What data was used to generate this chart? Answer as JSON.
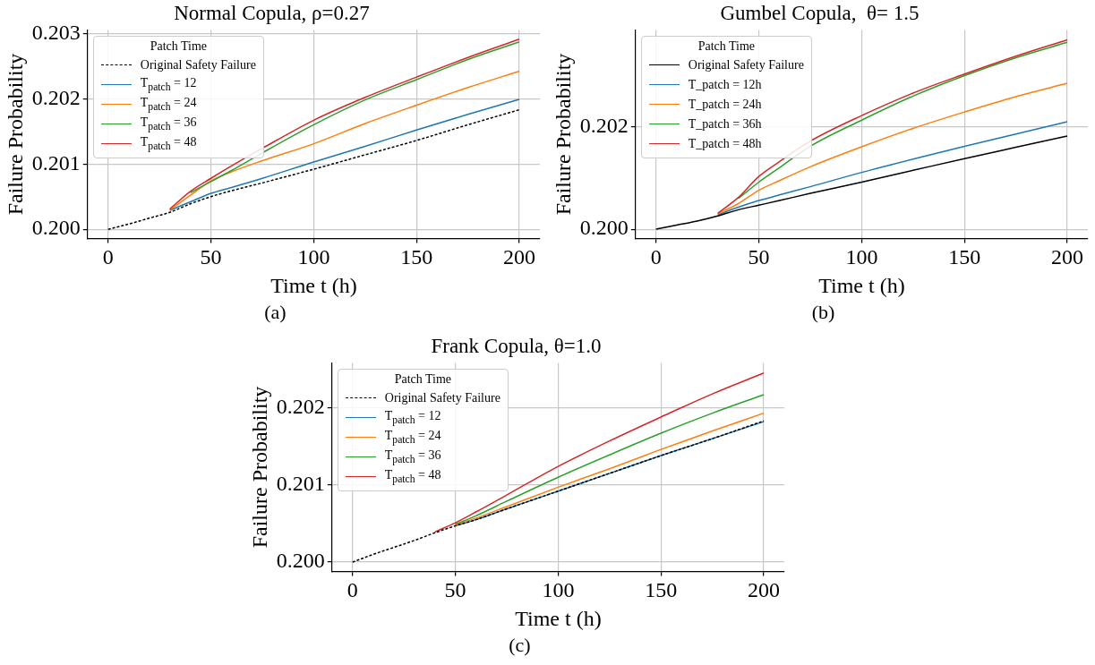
{
  "chart_data": [
    {
      "type": "line",
      "title": "Normal Copula, ρ=0.27",
      "xlabel": "Time t (h)",
      "ylabel": "Failure Probability",
      "legend_title": "Patch Time",
      "legend": "top left",
      "grid": true,
      "annotations": [
        "(a)"
      ],
      "xlim": [
        -10,
        210
      ],
      "xticks": [
        0,
        50,
        100,
        150,
        200
      ],
      "ylim": [
        0.19986,
        0.20305
      ],
      "yticks": [
        {
          "value": 0.2,
          "label": "0.200"
        },
        {
          "value": 0.201,
          "label": "0.201"
        },
        {
          "value": 0.202,
          "label": "0.202"
        },
        {
          "value": 0.203,
          "label": "0.203"
        }
      ],
      "x": [
        0,
        10,
        20,
        30,
        40,
        50,
        60,
        75,
        100,
        125,
        150,
        175,
        200
      ],
      "series": [
        {
          "name": "Original Safety Failure",
          "color": "#000000",
          "line_style": "dashed",
          "values": [
            0.2,
            0.20008,
            0.20017,
            0.20026,
            0.20039,
            0.2005,
            0.20059,
            0.20071,
            0.20092,
            0.20114,
            0.20136,
            0.2016,
            0.20183
          ]
        },
        {
          "name": "T$_{patch}$ = 12",
          "color": "#1f77b4",
          "values": [
            null,
            null,
            null,
            0.20029,
            0.20042,
            0.20055,
            0.20064,
            0.20078,
            0.20103,
            0.20127,
            0.20152,
            0.20176,
            0.20199
          ]
        },
        {
          "name": "T$_{patch}$ = 24",
          "color": "#ff7f0e",
          "values": [
            null,
            null,
            null,
            0.2003,
            0.20052,
            0.20074,
            0.20088,
            0.20105,
            0.20131,
            0.20162,
            0.2019,
            0.20217,
            0.20242
          ]
        },
        {
          "name": "T$_{patch}$ = 36",
          "color": "#2ca02c",
          "values": [
            null,
            null,
            null,
            null,
            0.20056,
            0.20073,
            0.2009,
            0.20117,
            0.2016,
            0.20198,
            0.20229,
            0.2026,
            0.20287
          ]
        },
        {
          "name": "T$_{patch}$ = 48",
          "color": "#d62728",
          "values": [
            null,
            null,
            null,
            0.20031,
            0.20058,
            0.20078,
            0.20097,
            0.20124,
            0.20167,
            0.20202,
            0.20233,
            0.20263,
            0.20291
          ]
        }
      ]
    },
    {
      "type": "line",
      "title": "Gumbel Copula,  θ= 1.5",
      "xlabel": "Time t (h)",
      "ylabel": "Failure Probability",
      "legend_title": "Patch Time",
      "legend": "top left",
      "grid": true,
      "annotations": [
        "(b)"
      ],
      "xlim": [
        -10,
        210
      ],
      "xticks": [
        0,
        50,
        100,
        150,
        200
      ],
      "ylim": [
        0.19982,
        0.20389
      ],
      "yticks": [
        {
          "value": 0.2,
          "label": "0.200"
        },
        {
          "value": 0.202,
          "label": "0.202"
        }
      ],
      "x": [
        0,
        10,
        20,
        30,
        40,
        50,
        60,
        75,
        100,
        125,
        150,
        175,
        200
      ],
      "series": [
        {
          "name": "Original Safety Failure",
          "color": "#000000",
          "values": [
            0.2,
            0.20008,
            0.20016,
            0.20026,
            0.20038,
            0.20047,
            0.20056,
            0.2007,
            0.20092,
            0.20115,
            0.20138,
            0.2016,
            0.20182
          ]
        },
        {
          "name": "T_patch = 12h",
          "color": "#1f77b4",
          "values": [
            null,
            null,
            null,
            0.20028,
            0.20043,
            0.20056,
            0.20067,
            0.20083,
            0.20111,
            0.20137,
            0.20162,
            0.20186,
            0.2021
          ]
        },
        {
          "name": "T_patch = 24h",
          "color": "#ff7f0e",
          "values": [
            null,
            null,
            null,
            0.2003,
            0.2005,
            0.20076,
            0.20095,
            0.20122,
            0.20161,
            0.20197,
            0.20229,
            0.20259,
            0.20285
          ]
        },
        {
          "name": "T_patch = 36h",
          "color": "#2ca02c",
          "values": [
            null,
            null,
            null,
            null,
            0.2006,
            0.20092,
            0.2012,
            0.20162,
            0.20213,
            0.2026,
            0.203,
            0.20335,
            0.20365
          ]
        },
        {
          "name": "T_patch = 48h",
          "color": "#d62728",
          "values": [
            null,
            null,
            null,
            0.20031,
            0.20062,
            0.20103,
            0.20132,
            0.20172,
            0.20222,
            0.20266,
            0.20303,
            0.20338,
            0.2037
          ]
        }
      ]
    },
    {
      "type": "line",
      "title": "Frank Copula, θ=1.0",
      "xlabel": "Time t (h)",
      "ylabel": "Failure Probability",
      "legend_title": "Patch Time",
      "legend": "top left",
      "grid": true,
      "annotations": [
        "(c)"
      ],
      "xlim": [
        -10,
        210
      ],
      "xticks": [
        0,
        50,
        100,
        150,
        200
      ],
      "ylim": [
        0.19988,
        0.20258
      ],
      "yticks": [
        {
          "value": 0.2,
          "label": "0.200"
        },
        {
          "value": 0.201,
          "label": "0.201"
        },
        {
          "value": 0.202,
          "label": "0.202"
        }
      ],
      "x": [
        0,
        10,
        20,
        30,
        40,
        50,
        60,
        75,
        100,
        125,
        150,
        175,
        200
      ],
      "series": [
        {
          "name": "Original Safety Failure",
          "color": "#000000",
          "line_style": "dashed",
          "values": [
            0.2,
            0.2001,
            0.20019,
            0.20028,
            0.20038,
            0.20047,
            0.20055,
            0.20069,
            0.20092,
            0.20115,
            0.20138,
            0.2016,
            0.20183
          ]
        },
        {
          "name": "T$_{patch}$ = 12",
          "color": "#1f77b4",
          "values": [
            null,
            null,
            null,
            null,
            null,
            0.20047,
            0.20055,
            0.20069,
            0.20092,
            0.20115,
            0.20138,
            0.2016,
            0.20182
          ]
        },
        {
          "name": "T$_{patch}$ = 24",
          "color": "#ff7f0e",
          "values": [
            null,
            null,
            null,
            null,
            null,
            0.20048,
            0.20057,
            0.20072,
            0.20097,
            0.20121,
            0.20146,
            0.2017,
            0.20193
          ]
        },
        {
          "name": "T$_{patch}$ = 36",
          "color": "#2ca02c",
          "values": [
            null,
            null,
            null,
            null,
            null,
            0.20049,
            0.2006,
            0.20079,
            0.2011,
            0.20139,
            0.20167,
            0.20193,
            0.20217
          ]
        },
        {
          "name": "T$_{patch}$ = 48",
          "color": "#d62728",
          "values": [
            null,
            null,
            null,
            null,
            0.20039,
            0.20051,
            0.20065,
            0.20087,
            0.20124,
            0.20157,
            0.20188,
            0.20218,
            0.20245
          ]
        }
      ]
    }
  ]
}
